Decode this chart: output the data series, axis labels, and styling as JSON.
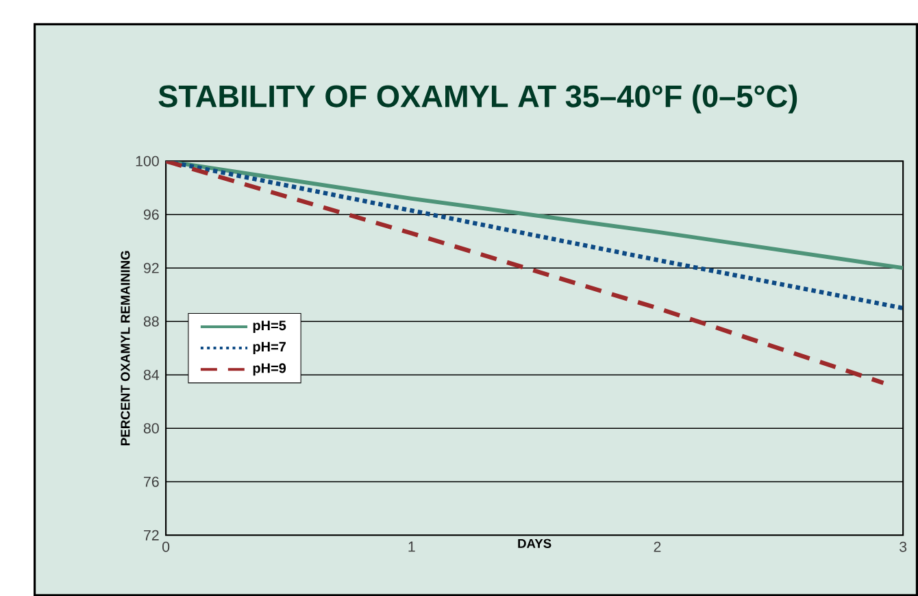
{
  "chart_data": {
    "type": "line",
    "title": "STABILITY OF OXAMYL AT 35–40°F (0–5°C)",
    "xlabel": "DAYS",
    "ylabel": "PERCENT OXAMYL REMAINING",
    "series": [
      {
        "name": "pH=5",
        "color": "#4e9479",
        "line_style": "solid",
        "x": [
          0,
          1,
          2,
          3
        ],
        "values": [
          100,
          97.2,
          94.7,
          92
        ]
      },
      {
        "name": "pH=7",
        "color": "#0d4a85",
        "line_style": "dotted",
        "x": [
          0,
          1,
          2,
          3
        ],
        "values": [
          100,
          96.3,
          92.6,
          89
        ]
      },
      {
        "name": "pH=9",
        "color": "#9e2a2b",
        "line_style": "dashed",
        "x": [
          0,
          1,
          2,
          2.92
        ],
        "values": [
          100,
          94.6,
          89,
          83.4
        ]
      }
    ],
    "xlim": [
      0,
      3
    ],
    "xticks": [
      0,
      1,
      2,
      3
    ],
    "ylim": [
      72,
      100
    ],
    "yticks": [
      72,
      76,
      80,
      84,
      88,
      92,
      96,
      100
    ],
    "grid": "y",
    "legend": "left"
  }
}
